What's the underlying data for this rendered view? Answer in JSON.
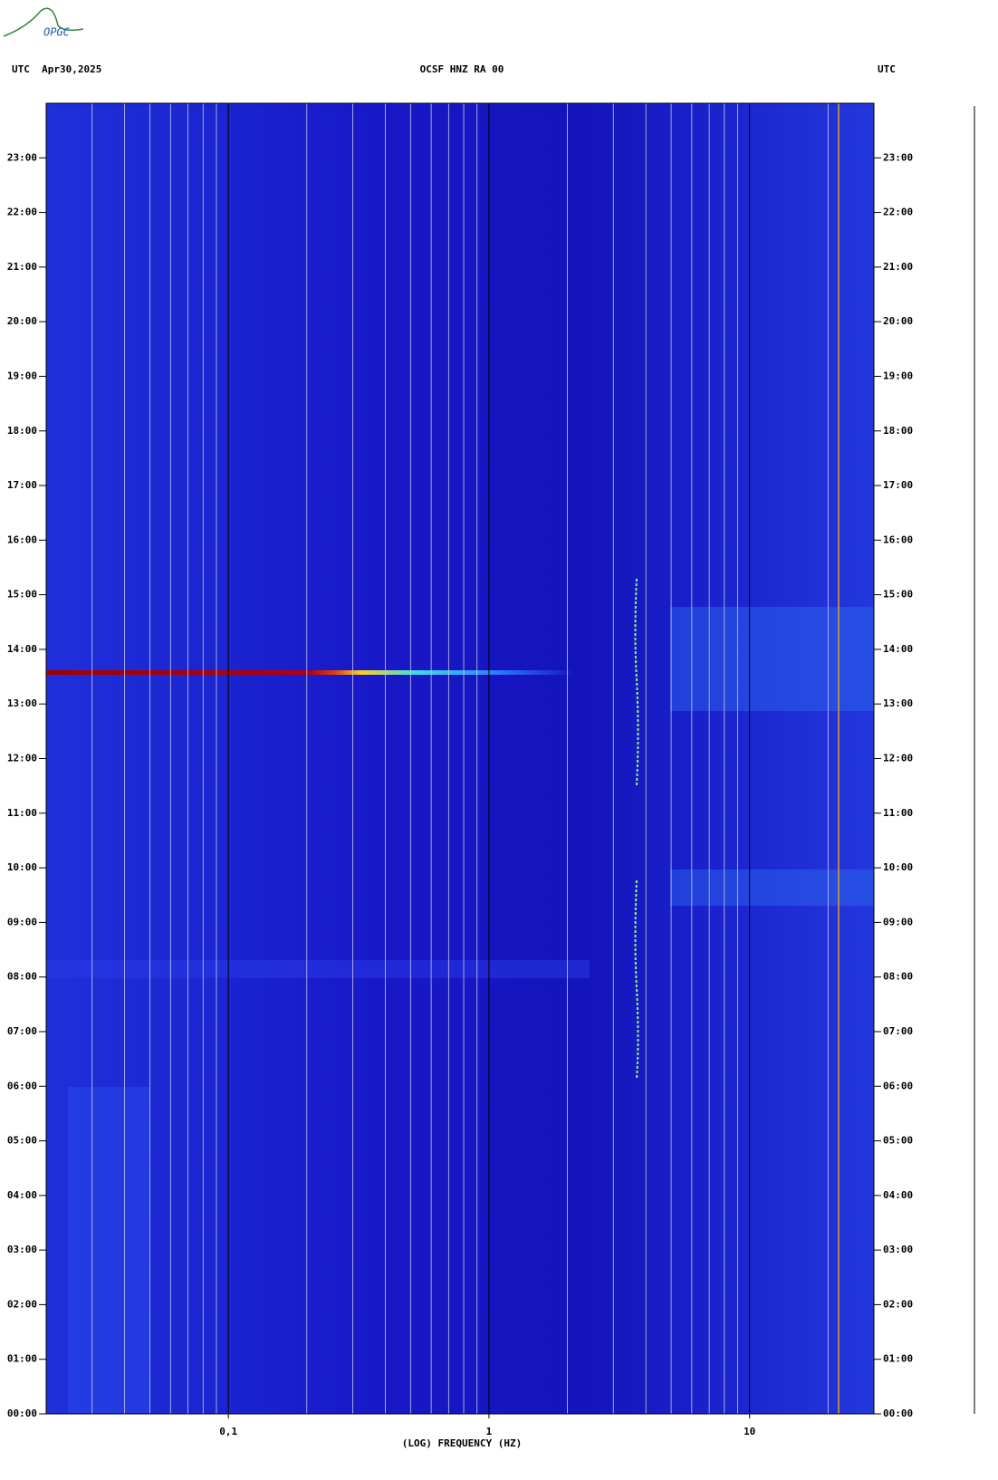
{
  "logo": "OPGC",
  "chart_data": {
    "type": "spectrogram",
    "title": "OCSF HNZ RA 00",
    "date_label": "UTC  Apr30,2025",
    "right_label": "UTC",
    "xlabel": "(LOG) FREQUENCY (HZ)",
    "xscale": "log",
    "xlim": [
      0.02,
      30
    ],
    "xticks": [
      {
        "value": 0.1,
        "label": "0,1"
      },
      1,
      10
    ],
    "xminorticks": [
      0.03,
      0.04,
      0.05,
      0.06,
      0.07,
      0.08,
      0.09,
      0.2,
      0.3,
      0.4,
      0.5,
      0.6,
      0.7,
      0.8,
      0.9,
      2,
      3,
      4,
      5,
      6,
      7,
      8,
      9,
      20
    ],
    "ylim": [
      0,
      24
    ],
    "yticks": [
      {
        "value": 0,
        "label": "00:00"
      },
      {
        "value": 1,
        "label": "01:00"
      },
      {
        "value": 2,
        "label": "02:00"
      },
      {
        "value": 3,
        "label": "03:00"
      },
      {
        "value": 4,
        "label": "04:00"
      },
      {
        "value": 5,
        "label": "05:00"
      },
      {
        "value": 6,
        "label": "06:00"
      },
      {
        "value": 7,
        "label": "07:00"
      },
      {
        "value": 8,
        "label": "08:00"
      },
      {
        "value": 9,
        "label": "09:00"
      },
      {
        "value": 10,
        "label": "10:00"
      },
      {
        "value": 11,
        "label": "11:00"
      },
      {
        "value": 12,
        "label": "12:00"
      },
      {
        "value": 13,
        "label": "13:00"
      },
      {
        "value": 14,
        "label": "14:00"
      },
      {
        "value": 15,
        "label": "15:00"
      },
      {
        "value": 16,
        "label": "16:00"
      },
      {
        "value": 17,
        "label": "17:00"
      },
      {
        "value": 18,
        "label": "18:00"
      },
      {
        "value": 19,
        "label": "19:00"
      },
      {
        "value": 20,
        "label": "20:00"
      },
      {
        "value": 21,
        "label": "21:00"
      },
      {
        "value": 22,
        "label": "22:00"
      },
      {
        "value": 23,
        "label": "23:00"
      }
    ],
    "grid": true
  }
}
